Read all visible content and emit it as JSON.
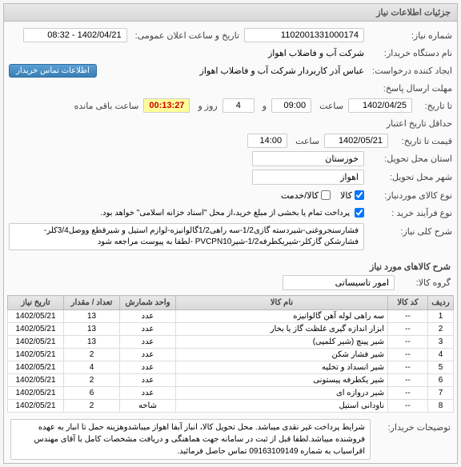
{
  "panel": {
    "title": "جزئیات اطلاعات نیاز"
  },
  "fields": {
    "need_no_label": "شماره نیاز:",
    "need_no": "1102001331000174",
    "announce_label": "تاریخ و ساعت اعلان عمومی:",
    "announce": "1402/04/21 - 08:32",
    "buyer_label": "نام دستگاه خریدار:",
    "buyer": "شرکت آب و فاضلاب اهواز",
    "requester_label": "ایجاد کننده درخواست:",
    "requester": "عباس آذر کاربردار شرکت آب و فاضلاب اهواز",
    "contact_btn": "اطلاعات تماس خریدار",
    "deadline_label": "مهلت ارسال پاسخ:",
    "deadline_tarikh": "تا تاریخ:",
    "deadline_date": "1402/04/25",
    "saat_label": "ساعت",
    "deadline_time": "09:00",
    "va_label": "و",
    "days": "4",
    "rooz_label": "روز و",
    "timer": "00:13:27",
    "remain_label": "ساعت باقی مانده",
    "min_valid_label": "حداقل تاریخ اعتبار",
    "price_until": "قیمت تا تاریخ:",
    "valid_date": "1402/05/21",
    "valid_time": "14:00",
    "province_label": "استان محل تحویل:",
    "province": "خوزستان",
    "city_label": "شهر محل تحویل:",
    "city": "اهواز",
    "item_type_label": "نوع کالای موردنیاز:",
    "cb_kala": "کالا",
    "cb_khadamat": "کالا/خدمت",
    "buy_type_label": "نوع فرآیند خرید :",
    "buy_type_note": "پرداخت تمام یا بخشی از مبلغ خرید،از محل \"اسناد خزانه اسلامی\" خواهد بود.",
    "general_desc_label": "شرح کلی نیاز:",
    "general_desc": "فشارسنجروغنی-شیردسته گازی1/2-سه راهی1/2گالوانیزه-لوازم استیل و شیرقطع ووصل3/4کلر-فشارشکن گازکلر-شیریکطرفه1/2-شیرPVCPN10 -لطفا به پیوست مراجعه شود",
    "items_header": "شرح کالاهای مورد نیاز",
    "group_label": "گروه کالا:",
    "group": "امور تاسیساتی",
    "buyer_desc_label": "توضیحات خریدار:",
    "buyer_desc": "شرایط پرداخت غیر نقدی میباشد. محل تحویل کالا، انبار آبفا اهواز میباشدوهزینه حمل تا انبار به عهده فروشنده میباشد.لطفا قبل از ثبت در سامانه جهت هماهنگی و دریافت مشخصات کامل با آقای مهندس اقراسیاب به شماره  09163109149 تماس حاصل فرمائید."
  },
  "table": {
    "headers": {
      "row": "ردیف",
      "code": "کد کالا",
      "name": "نام کالا",
      "unit": "واحد شمارش",
      "qty": "تعداد / مقدار",
      "date": "تاریخ نیاز"
    },
    "rows": [
      {
        "idx": "1",
        "code": "--",
        "name": "سه راهی لوله آهن گالوانیزه",
        "unit": "عدد",
        "qty": "13",
        "date": "1402/05/21"
      },
      {
        "idx": "2",
        "code": "--",
        "name": "ابزار اندازه گیری غلظت گاز یا بخار",
        "unit": "عدد",
        "qty": "13",
        "date": "1402/05/21"
      },
      {
        "idx": "3",
        "code": "--",
        "name": "شیر پینچ (شیر کلمپی)",
        "unit": "عدد",
        "qty": "13",
        "date": "1402/05/21"
      },
      {
        "idx": "4",
        "code": "--",
        "name": "شیر فشار شکن",
        "unit": "عدد",
        "qty": "2",
        "date": "1402/05/21"
      },
      {
        "idx": "5",
        "code": "--",
        "name": "شیر انسداد و تخلیه",
        "unit": "عدد",
        "qty": "4",
        "date": "1402/05/21"
      },
      {
        "idx": "6",
        "code": "--",
        "name": "شیر یکطرفه پیستونی",
        "unit": "عدد",
        "qty": "2",
        "date": "1402/05/21"
      },
      {
        "idx": "7",
        "code": "--",
        "name": "شیر دروازه ای",
        "unit": "عدد",
        "qty": "6",
        "date": "1402/05/21"
      },
      {
        "idx": "8",
        "code": "--",
        "name": "ناودانی استیل",
        "unit": "شاخه",
        "qty": "2",
        "date": "1402/05/21"
      }
    ]
  }
}
